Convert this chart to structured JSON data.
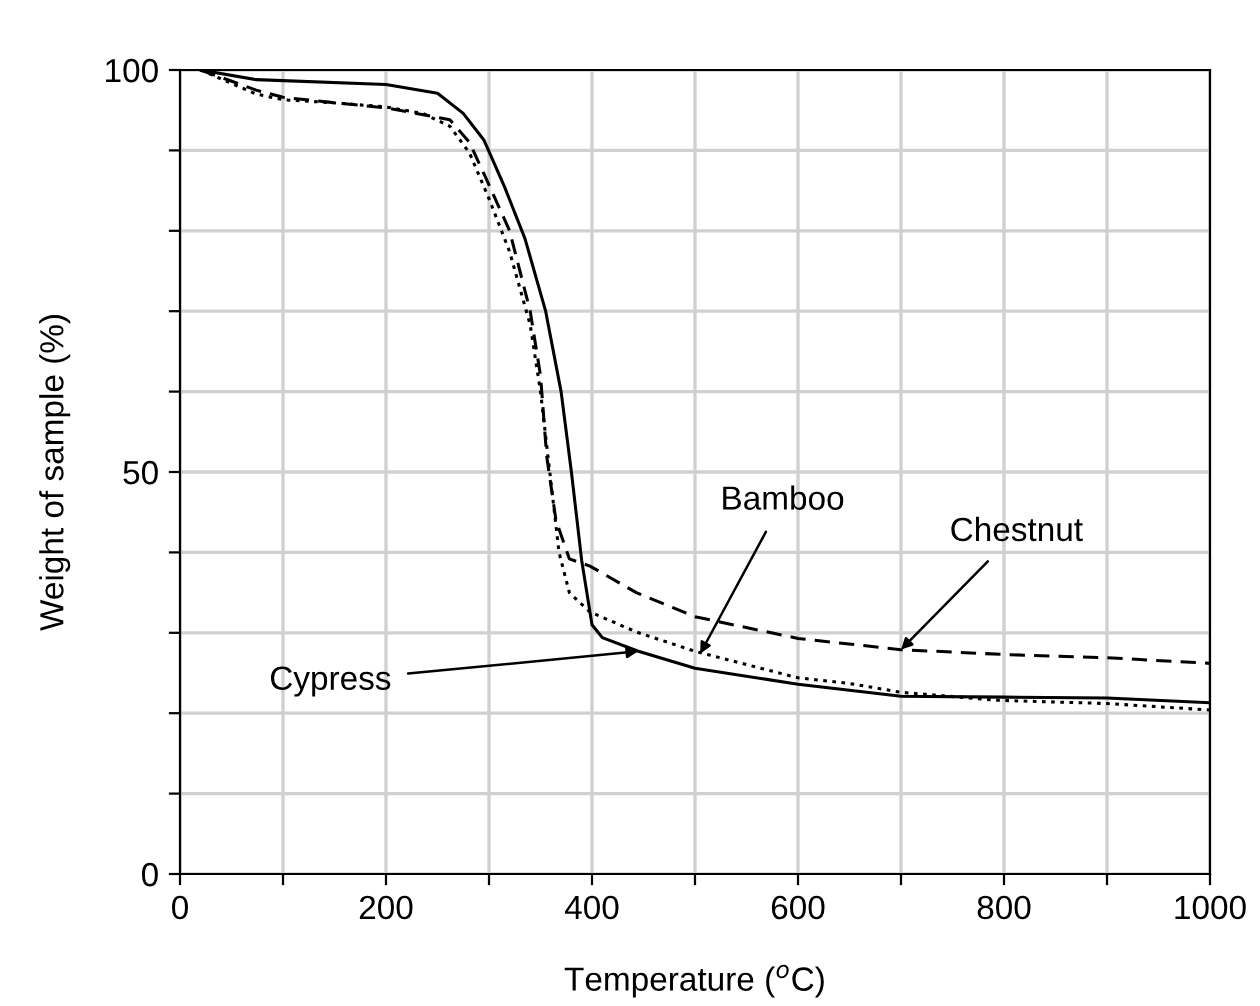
{
  "chart_data": {
    "type": "line",
    "xlabel": "Temperature ($^{o}$C)",
    "ylabel": "Weight of sample (%)",
    "xlim": [
      0,
      1000
    ],
    "ylim": [
      0,
      100
    ],
    "xticks": [
      0,
      {
        "value": 100,
        "label": null
      },
      200,
      {
        "value": 300,
        "label": null
      },
      400,
      {
        "value": 500,
        "label": null
      },
      600,
      {
        "value": 700,
        "label": null
      },
      800,
      {
        "value": 900,
        "label": null
      },
      1000
    ],
    "yticks": [
      0,
      {
        "value": 10,
        "label": null
      },
      {
        "value": 20,
        "label": null
      },
      {
        "value": 30,
        "label": null
      },
      {
        "value": 40,
        "label": null
      },
      50,
      {
        "value": 60,
        "label": null
      },
      {
        "value": 70,
        "label": null
      },
      {
        "value": 80,
        "label": null
      },
      {
        "value": 90,
        "label": null
      },
      100
    ],
    "grid": true,
    "series": [
      {
        "color": "#000000",
        "line_style": "solid",
        "x": [
          20,
          74,
          200,
          250,
          275,
          295,
          315,
          335,
          355,
          370,
          380,
          390,
          400,
          410,
          445,
          500,
          600,
          700,
          800,
          900,
          1000
        ],
        "values": [
          100,
          98.8,
          98.2,
          97.1,
          94.6,
          91.3,
          85.5,
          79,
          70,
          60,
          50,
          39,
          31,
          29.4,
          27.7,
          25.6,
          23.6,
          22.1,
          22,
          21.9,
          21.3
        ]
      },
      {
        "color": "#000000",
        "line_style": "dotted",
        "x": [
          20,
          74,
          100,
          152,
          200,
          236,
          262,
          281,
          300,
          320,
          340,
          350,
          359,
          368,
          378,
          398,
          443,
          500,
          600,
          650,
          700,
          795,
          900,
          1000
        ],
        "values": [
          100,
          97,
          96.3,
          95.9,
          95.4,
          94.6,
          93,
          89.7,
          84,
          77.4,
          68.3,
          60,
          50,
          40,
          35,
          32.6,
          30.1,
          27.7,
          24.4,
          23.7,
          22.6,
          21.6,
          21.2,
          20.4
        ]
      },
      {
        "color": "#000000",
        "line_style": "dashed",
        "x": [
          20,
          74,
          100,
          152,
          200,
          262,
          281,
          300,
          320,
          340,
          350,
          356,
          365,
          378,
          398,
          443,
          500,
          600,
          700,
          800,
          900,
          1000
        ],
        "values": [
          100,
          97.5,
          96.6,
          95.9,
          95.3,
          93.8,
          91,
          85.7,
          80,
          70,
          62,
          52,
          44,
          39.2,
          38.3,
          35,
          32,
          29.3,
          27.9,
          27.3,
          26.9,
          26.2
        ]
      }
    ],
    "annotations": [
      {
        "text": "Cypress",
        "x": 445,
        "y": 27.7
      },
      {
        "text": "Bamboo",
        "x": 505,
        "y": 27.4
      },
      {
        "text": "Chestnut",
        "x": 700,
        "y": 27.9
      }
    ]
  }
}
